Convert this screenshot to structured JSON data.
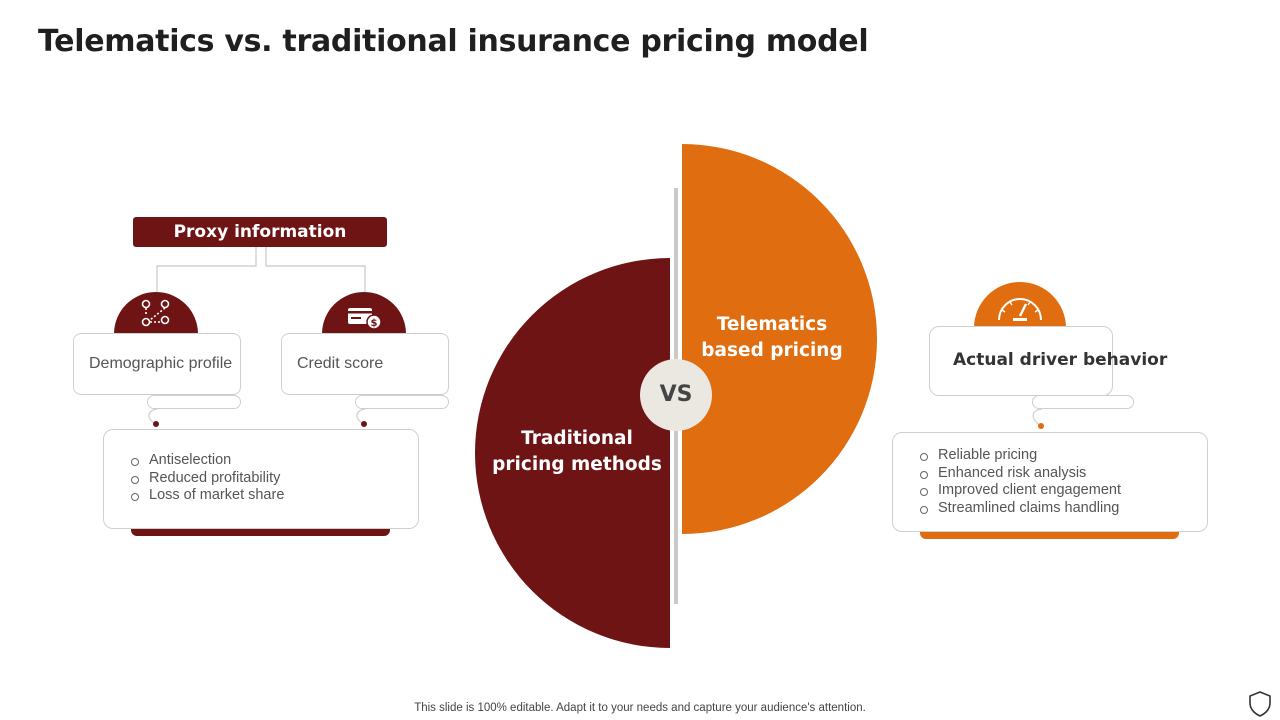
{
  "title": "Telematics vs. traditional insurance pricing model",
  "left_section": {
    "header": "Proxy information",
    "cards": [
      {
        "icon": "route-map-pins-icon",
        "label": "Demographic profile"
      },
      {
        "icon": "credit-card-dollar-icon",
        "label": "Credit score"
      }
    ],
    "consequences": [
      "Antiselection",
      "Reduced profitability",
      "Loss of market share"
    ]
  },
  "center": {
    "traditional_label_line1": "Traditional",
    "traditional_label_line2": "pricing methods",
    "telematics_label_line1": "Telematics",
    "telematics_label_line2": "based pricing",
    "vs_label": "VS"
  },
  "right_section": {
    "icon": "speedometer-icon",
    "header": "Actual driver behavior",
    "benefits": [
      "Reliable pricing",
      "Enhanced risk analysis",
      "Improved client engagement",
      "Streamlined claims handling"
    ]
  },
  "footer": "This slide is 100% editable. Adapt it to your needs and capture your audience's attention.",
  "colors": {
    "traditional": "#6e1414",
    "telematics": "#e06d10",
    "vs_circle": "#ebe7e1"
  }
}
